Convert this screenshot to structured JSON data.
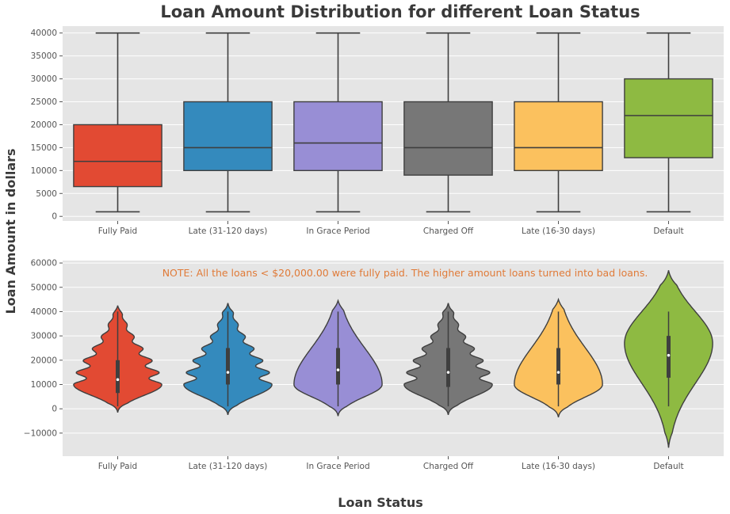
{
  "figure": {
    "title": "Loan Amount Distribution for different Loan Status",
    "ylabel": "Loan Amount in dollars",
    "xlabel": "Loan Status",
    "note": "NOTE: All the loans < $20,000.00 were fully paid. The higher amount loans turned into bad loans.",
    "background": "#e5e5e5",
    "grid_color": "#ffffff",
    "edge_color": "#3f3f3f",
    "note_color": "#e07b39"
  },
  "chart_data": [
    {
      "type": "box",
      "categories": [
        "Fully Paid",
        "Late (31-120 days)",
        "In Grace Period",
        "Charged Off",
        "Late (16-30 days)",
        "Default"
      ],
      "colors": [
        "#e24a33",
        "#348abd",
        "#988ed5",
        "#777777",
        "#fbc15e",
        "#8eba42"
      ],
      "series": [
        {
          "min": 1000,
          "q1": 6500,
          "median": 12000,
          "q3": 20000,
          "max": 40000
        },
        {
          "min": 1000,
          "q1": 10000,
          "median": 15000,
          "q3": 25000,
          "max": 40000
        },
        {
          "min": 1000,
          "q1": 10000,
          "median": 16000,
          "q3": 25000,
          "max": 40000
        },
        {
          "min": 1000,
          "q1": 9000,
          "median": 15000,
          "q3": 25000,
          "max": 40000
        },
        {
          "min": 1000,
          "q1": 10000,
          "median": 15000,
          "q3": 25000,
          "max": 40000
        },
        {
          "min": 1000,
          "q1": 12800,
          "median": 22000,
          "q3": 30000,
          "max": 40000
        }
      ],
      "yticks": [
        0,
        5000,
        10000,
        15000,
        20000,
        25000,
        30000,
        35000,
        40000
      ],
      "ylim": [
        -1000,
        41500
      ],
      "grid": true
    },
    {
      "type": "violin",
      "categories": [
        "Fully Paid",
        "Late (31-120 days)",
        "In Grace Period",
        "Charged Off",
        "Late (16-30 days)",
        "Default"
      ],
      "colors": [
        "#e24a33",
        "#348abd",
        "#988ed5",
        "#777777",
        "#fbc15e",
        "#8eba42"
      ],
      "series": [
        {
          "min": 1000,
          "q1": 6500,
          "median": 12000,
          "q3": 20000,
          "max": 40000,
          "range": [
            -1500,
            42500
          ],
          "peaks": [
            10000
          ],
          "ripple": true
        },
        {
          "min": 1000,
          "q1": 10000,
          "median": 15000,
          "q3": 25000,
          "max": 40000,
          "range": [
            -2500,
            43500
          ],
          "peaks": [
            10000
          ],
          "ripple": true
        },
        {
          "min": 1000,
          "q1": 10000,
          "median": 16000,
          "q3": 25000,
          "max": 40000,
          "range": [
            -3000,
            44500
          ],
          "peaks": [
            10000
          ],
          "ripple": false
        },
        {
          "min": 1000,
          "q1": 9000,
          "median": 15000,
          "q3": 25000,
          "max": 40000,
          "range": [
            -2500,
            43500
          ],
          "peaks": [
            10000
          ],
          "ripple": true
        },
        {
          "min": 1000,
          "q1": 10000,
          "median": 15000,
          "q3": 25000,
          "max": 40000,
          "range": [
            -3500,
            45000
          ],
          "peaks": [
            10000
          ],
          "ripple": false
        },
        {
          "min": 1000,
          "q1": 12800,
          "median": 22000,
          "q3": 30000,
          "max": 40000,
          "range": [
            -16000,
            57000
          ],
          "peaks": [
            27000
          ],
          "ripple": false
        }
      ],
      "yticks": [
        -10000,
        0,
        10000,
        20000,
        30000,
        40000,
        50000,
        60000
      ],
      "ylim": [
        -19500,
        61000
      ],
      "grid": true
    }
  ]
}
